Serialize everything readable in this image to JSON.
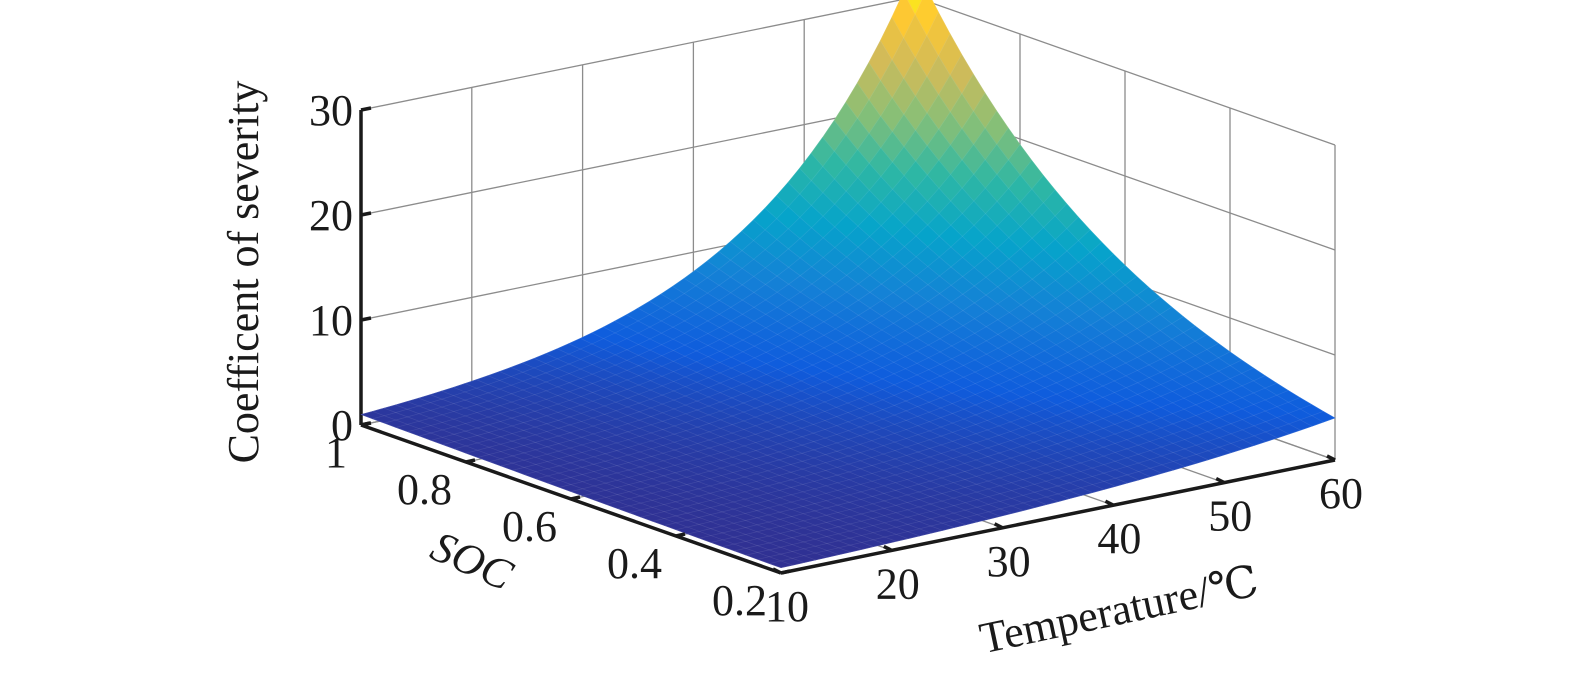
{
  "chart_data": {
    "type": "surface",
    "title": "",
    "xlabel": "Temperature/℃",
    "ylabel": "SOC",
    "zlabel": "Coefficent of severity",
    "x_ticks": [
      "10",
      "20",
      "30",
      "40",
      "50",
      "60"
    ],
    "y_ticks": [
      "0.2",
      "0.4",
      "0.6",
      "0.8",
      "1"
    ],
    "z_ticks": [
      "0",
      "10",
      "20",
      "30"
    ],
    "xlim": [
      10,
      60
    ],
    "ylim": [
      0.2,
      1
    ],
    "zlim": [
      0,
      30
    ],
    "grid": true,
    "colormap": "parula",
    "corner_values": [
      {
        "temperature": 10,
        "soc": 1.0,
        "severity": 1
      },
      {
        "temperature": 10,
        "soc": 0.2,
        "severity": 0.5
      },
      {
        "temperature": 60,
        "soc": 0.2,
        "severity": 4
      },
      {
        "temperature": 60,
        "soc": 1.0,
        "severity": 33
      }
    ],
    "colors": [
      "#352a87",
      "#0f5cdd",
      "#1481d6",
      "#06a4ca",
      "#2eb7a4",
      "#87bf77",
      "#d1bb59",
      "#fec832",
      "#f9fb0e"
    ]
  }
}
